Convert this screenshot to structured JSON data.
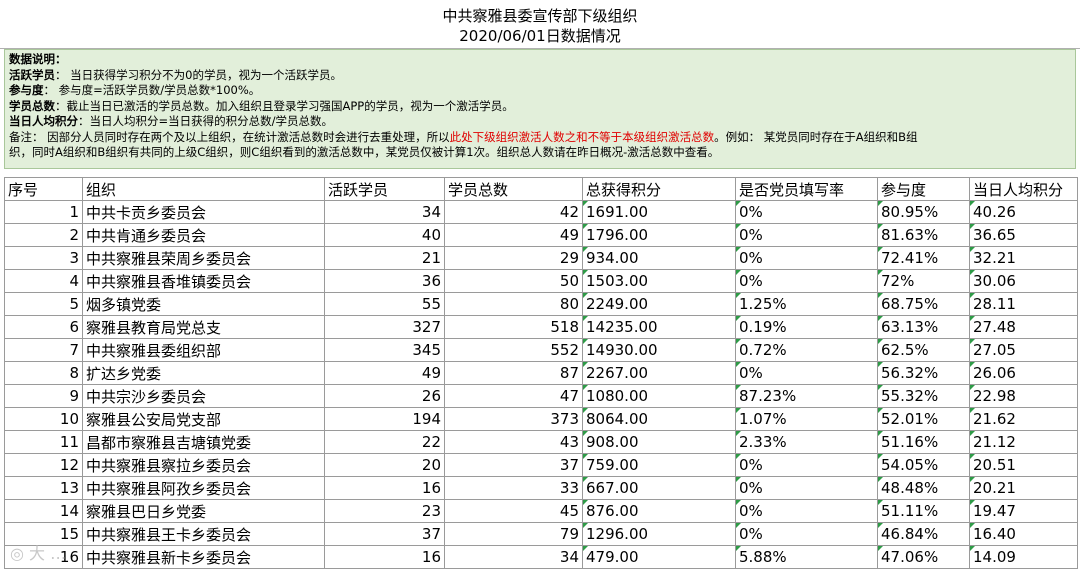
{
  "title": {
    "line1": "中共察雅县委宣传部下级组织",
    "line2": "2020/06/01日数据情况"
  },
  "notes": {
    "heading": "数据说明：",
    "active_label": "活跃学员",
    "active_text": "：  当日获得学习积分不为0的学员，视为一个活跃学员。",
    "rate_label": "参与度",
    "rate_text": "：  参与度=活跃学员数/学员总数*100%。",
    "total_label": "学员总数",
    "total_text": "：截止当日已激活的学员总数。加入组织且登录学习强国APP的学员，视为一个激活学员。",
    "avg_label": "当日人均积分",
    "avg_text": "：当日人均积分=当日获得的积分总数/学员总数。",
    "remark_a": "备注：  因部分人员同时存在两个及以上组织，在统计激活总数时会进行去重处理，所以",
    "remark_red": "此处下级组织激活人数之和不等于本级组织激活总数",
    "remark_b": "。例如：  某党员同时存在于A组织和B组",
    "remark_c": "织，同时A组织和B组织有共同的上级C组织，则C组织看到的激活总数中，某党员仅被计算1次。组织总人数请在昨日概况-激活总数中查看。"
  },
  "headers": [
    "序号",
    "组织",
    "活跃学员",
    "学员总数",
    "总获得积分",
    "是否党员填写率",
    "参与度",
    "当日人均积分"
  ],
  "rows": [
    [
      "1",
      "中共卡贡乡委员会",
      "34",
      "42",
      "1691.00",
      "0%",
      "80.95%",
      "40.26"
    ],
    [
      "2",
      "中共肯通乡委员会",
      "40",
      "49",
      "1796.00",
      "0%",
      "81.63%",
      "36.65"
    ],
    [
      "3",
      "中共察雅县荣周乡委员会",
      "21",
      "29",
      "934.00",
      "0%",
      "72.41%",
      "32.21"
    ],
    [
      "4",
      "中共察雅县香堆镇委员会",
      "36",
      "50",
      "1503.00",
      "0%",
      "72%",
      "30.06"
    ],
    [
      "5",
      "烟多镇党委",
      "55",
      "80",
      "2249.00",
      "1.25%",
      "68.75%",
      "28.11"
    ],
    [
      "6",
      "察雅县教育局党总支",
      "327",
      "518",
      "14235.00",
      "0.19%",
      "63.13%",
      "27.48"
    ],
    [
      "7",
      "中共察雅县委组织部",
      "345",
      "552",
      "14930.00",
      "0.72%",
      "62.5%",
      "27.05"
    ],
    [
      "8",
      "扩达乡党委",
      "49",
      "87",
      "2267.00",
      "0%",
      "56.32%",
      "26.06"
    ],
    [
      "9",
      "中共宗沙乡委员会",
      "26",
      "47",
      "1080.00",
      "87.23%",
      "55.32%",
      "22.98"
    ],
    [
      "10",
      "察雅县公安局党支部",
      "194",
      "373",
      "8064.00",
      "1.07%",
      "52.01%",
      "21.62"
    ],
    [
      "11",
      "昌都市察雅县吉塘镇党委",
      "22",
      "43",
      "908.00",
      "2.33%",
      "51.16%",
      "21.12"
    ],
    [
      "12",
      "中共察雅县察拉乡委员会",
      "20",
      "37",
      "759.00",
      "0%",
      "54.05%",
      "20.51"
    ],
    [
      "13",
      "中共察雅县阿孜乡委员会",
      "16",
      "33",
      "667.00",
      "0%",
      "48.48%",
      "20.21"
    ],
    [
      "14",
      "察雅县巴日乡党委",
      "23",
      "45",
      "876.00",
      "0%",
      "51.11%",
      "19.47"
    ],
    [
      "15",
      "中共察雅县王卡乡委员会",
      "37",
      "79",
      "1296.00",
      "0%",
      "46.84%",
      "16.40"
    ],
    [
      "16",
      "中共察雅县新卡乡委员会",
      "16",
      "34",
      "479.00",
      "5.88%",
      "47.06%",
      "14.09"
    ]
  ],
  "colors": {
    "notes_bg": "#e2efda",
    "remark_red": "#e00000",
    "cell_marker": "#2e9b47"
  }
}
